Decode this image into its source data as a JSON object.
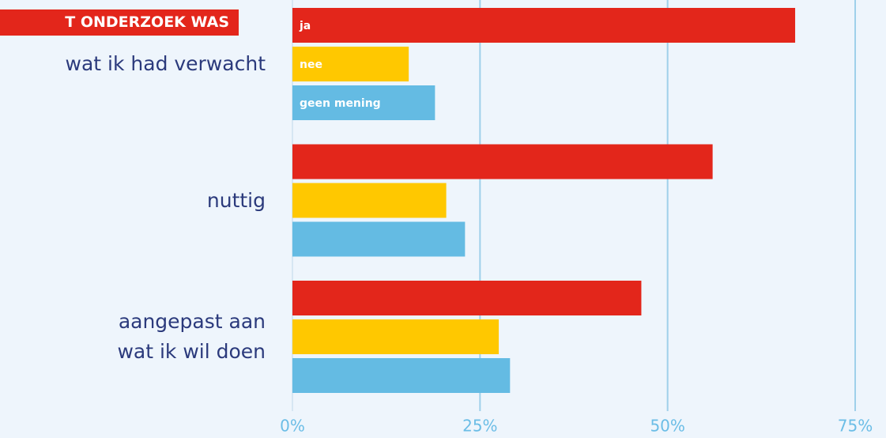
{
  "chart_data": {
    "type": "bar",
    "orientation": "horizontal",
    "title": "T ONDERZOEK WAS",
    "categories": [
      "wat ik had verwacht",
      "nuttig",
      "aangepast aan\nwat ik wil doen"
    ],
    "series": [
      {
        "name": "ja",
        "color": "#e3261b",
        "values": [
          67,
          56,
          46.5
        ]
      },
      {
        "name": "nee",
        "color": "#ffc800",
        "values": [
          15.5,
          20.5,
          27.5
        ]
      },
      {
        "name": "geen mening",
        "color": "#64bbe3",
        "values": [
          19,
          23,
          29
        ]
      }
    ],
    "xlim": [
      0,
      75
    ],
    "xticks": [
      {
        "value": 0,
        "label": "0%"
      },
      {
        "value": 25,
        "label": "25%"
      },
      {
        "value": 50,
        "label": "50%"
      },
      {
        "value": 75,
        "label": "75%"
      }
    ],
    "grid": true
  }
}
